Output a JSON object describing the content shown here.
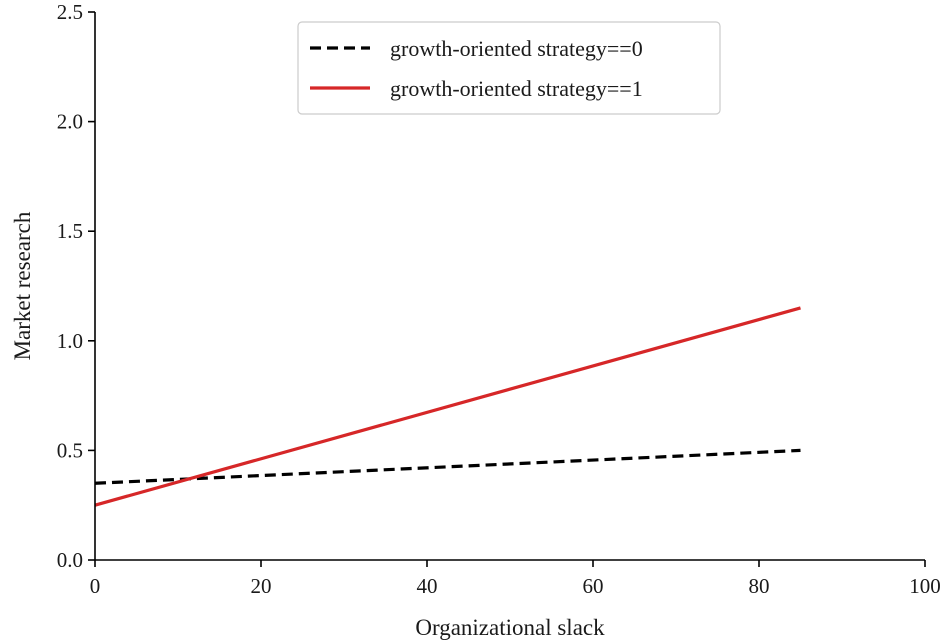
{
  "chart_data": {
    "type": "line",
    "title": "",
    "xlabel": "Organizational slack",
    "ylabel": "Market research",
    "xlim": [
      0,
      100
    ],
    "ylim": [
      0,
      2.5
    ],
    "x_ticks": [
      0,
      20,
      40,
      60,
      80,
      100
    ],
    "x_tick_labels": [
      "0",
      "20",
      "40",
      "60",
      "80",
      "100"
    ],
    "y_ticks": [
      0,
      0.5,
      1.0,
      1.5,
      2.0,
      2.5
    ],
    "y_tick_labels": [
      "0.0",
      "0.5",
      "1.0",
      "1.5",
      "2.0",
      "2.5"
    ],
    "grid": false,
    "legend_position": "top-center",
    "series": [
      {
        "name": "growth-oriented strategy==0",
        "color": "#000000",
        "style": "dashed",
        "x": [
          0,
          85
        ],
        "y": [
          0.35,
          0.5
        ]
      },
      {
        "name": "growth-oriented strategy==1",
        "color": "#d62728",
        "style": "solid",
        "x": [
          0,
          85
        ],
        "y": [
          0.25,
          1.15
        ]
      }
    ]
  }
}
